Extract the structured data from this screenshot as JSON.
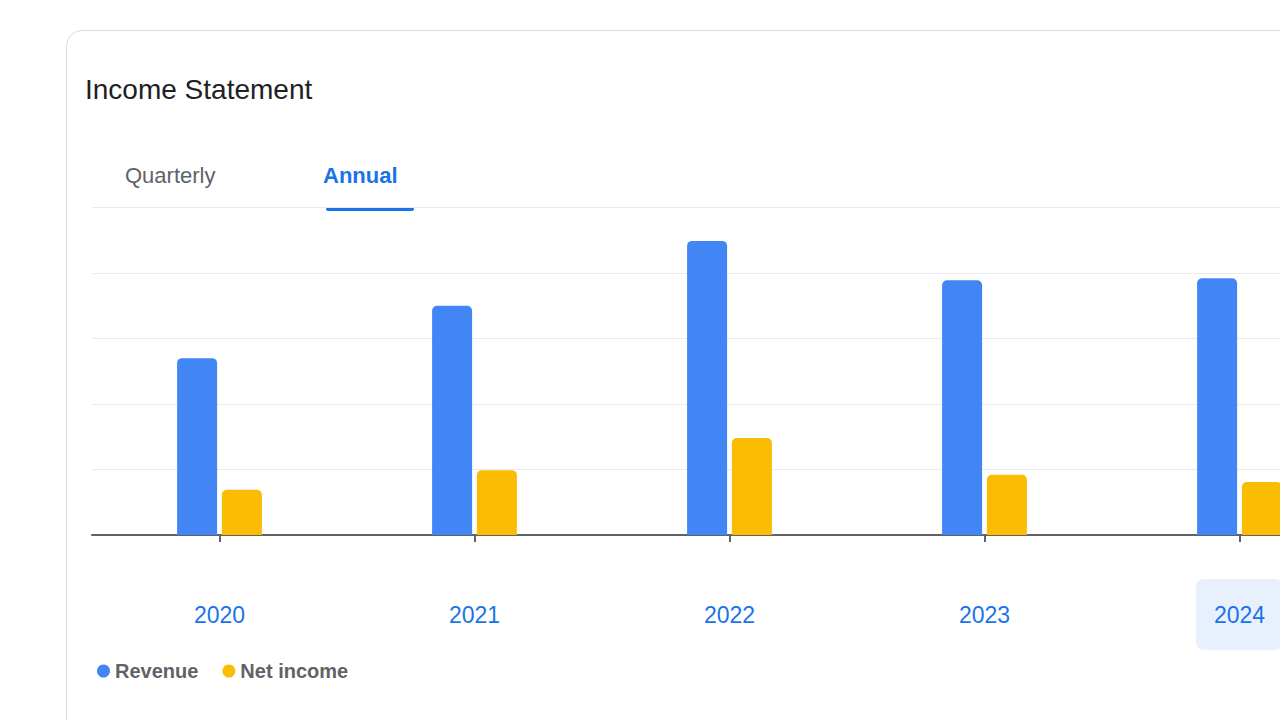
{
  "chart_data": {
    "type": "bar",
    "title": "Income Statement",
    "tabs": [
      "Quarterly",
      "Annual"
    ],
    "categories": [
      "2020",
      "2021",
      "2022",
      "2023",
      "2024"
    ],
    "series": [
      {
        "name": "Revenue",
        "color": "#4285f4",
        "values": [
          2.7,
          3.5,
          4.49,
          3.89,
          3.92
        ]
      },
      {
        "name": "Net income",
        "color": "#fbbc04",
        "values": [
          0.69,
          0.99,
          1.48,
          0.92,
          0.81
        ]
      }
    ],
    "ylim": [
      0,
      5
    ],
    "yticks": [
      0,
      1,
      2,
      3,
      4,
      5
    ],
    "grid": true,
    "legend": "bottom-left",
    "tick_labels": "x",
    "data_labels": false
  }
}
